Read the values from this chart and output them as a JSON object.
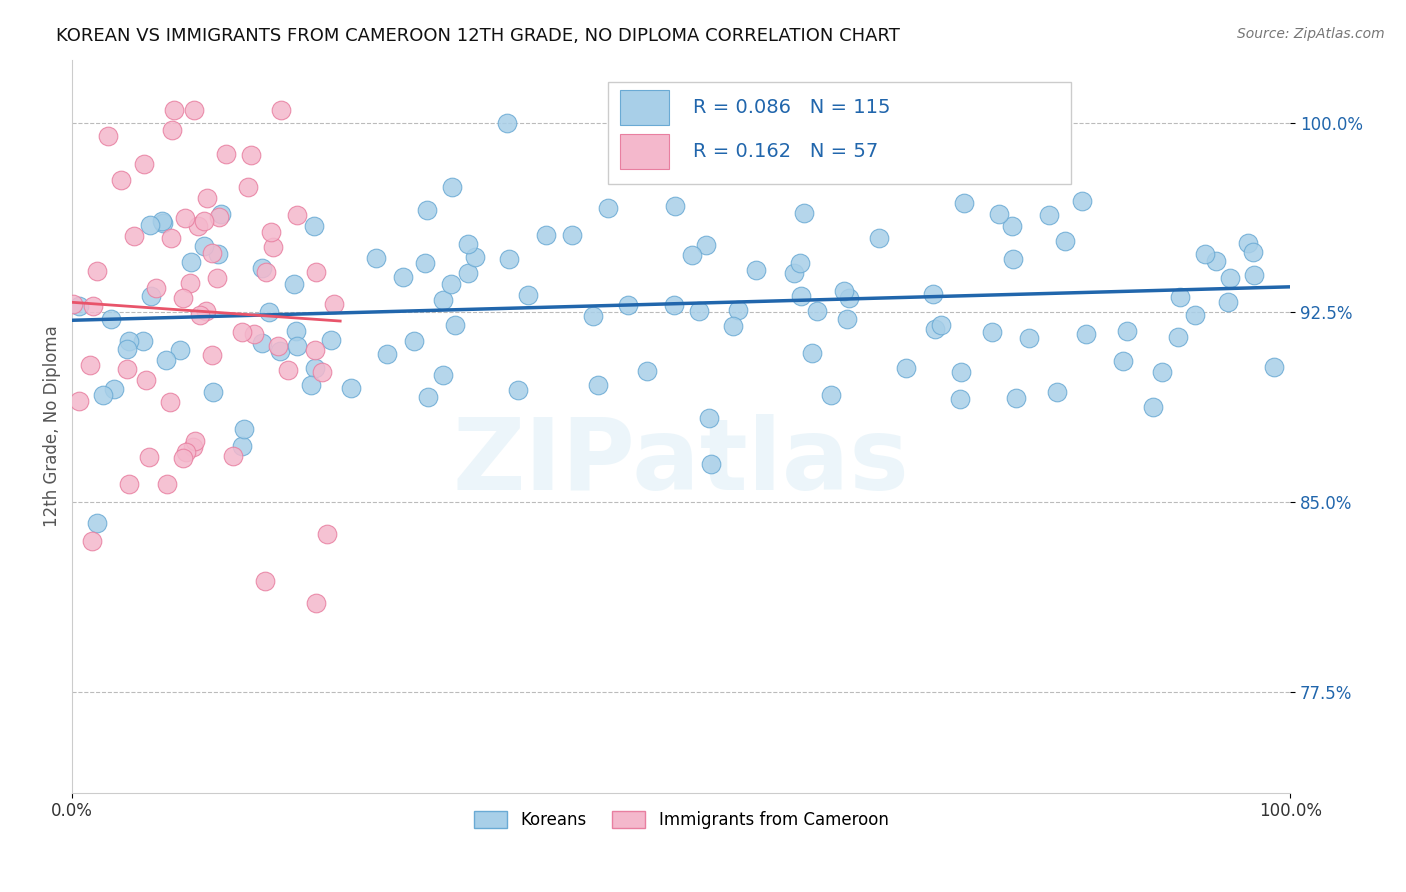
{
  "title": "KOREAN VS IMMIGRANTS FROM CAMEROON 12TH GRADE, NO DIPLOMA CORRELATION CHART",
  "source_text": "Source: ZipAtlas.com",
  "ylabel": "12th Grade, No Diploma",
  "xmin": 0.0,
  "xmax": 1.0,
  "ymin": 0.735,
  "ymax": 1.025,
  "yticks": [
    0.775,
    0.85,
    0.925,
    1.0
  ],
  "yticklabels": [
    "77.5%",
    "85.0%",
    "92.5%",
    "100.0%"
  ],
  "blue_R": 0.086,
  "blue_N": 115,
  "pink_R": 0.162,
  "pink_N": 57,
  "blue_marker_color": "#a8cfe8",
  "blue_edge_color": "#6aaad4",
  "pink_marker_color": "#f4b8cc",
  "pink_edge_color": "#e87fa0",
  "blue_line_color": "#2166ac",
  "pink_line_color": "#e8546a",
  "legend_blue_label": "Koreans",
  "legend_pink_label": "Immigrants from Cameroon",
  "background_color": "#ffffff",
  "watermark_text": "ZIPatlas"
}
